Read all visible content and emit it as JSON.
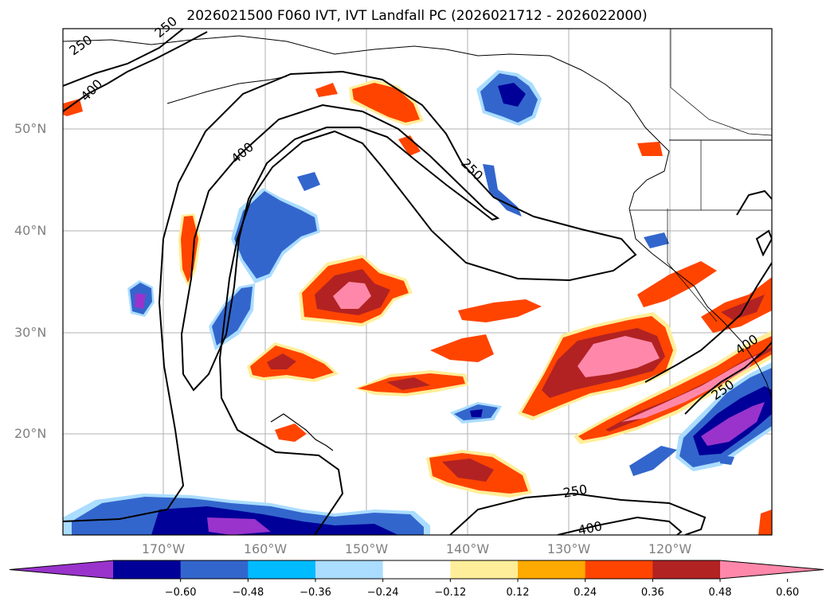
{
  "title": "2026021500 F060 IVT, IVT Landfall PC (2026021712 - 2026022000)",
  "lat_labels": [
    "50°N",
    "40°N",
    "30°N",
    "20°N"
  ],
  "lon_labels": [
    "170°W",
    "160°W",
    "150°W",
    "140°W",
    "130°W",
    "120°W"
  ],
  "contour_labels": [
    "250",
    "400",
    "250",
    "400",
    "250",
    "250",
    "400",
    "250",
    "400"
  ],
  "colorbar": {
    "ticks": [
      "−0.60",
      "−0.48",
      "−0.36",
      "−0.24",
      "−0.12",
      "0.12",
      "0.24",
      "0.36",
      "0.48",
      "0.60"
    ],
    "colors": [
      "#9933cc",
      "#000099",
      "#3366cc",
      "#00bbff",
      "#aaddff",
      "#ffffff",
      "#ffee99",
      "#ffaa00",
      "#ff4400",
      "#b22222",
      "#ff88aa"
    ]
  },
  "palette": {
    "neg_outer": "#aaddff",
    "neg_mid": "#00bbff",
    "neg_strong": "#3366cc",
    "neg_deep": "#000099",
    "neg_max": "#9933cc",
    "pos_outer": "#ffee99",
    "pos_mid": "#ffaa00",
    "pos_strong": "#ff4400",
    "pos_deep": "#b22222",
    "pos_max": "#ff88aa"
  }
}
